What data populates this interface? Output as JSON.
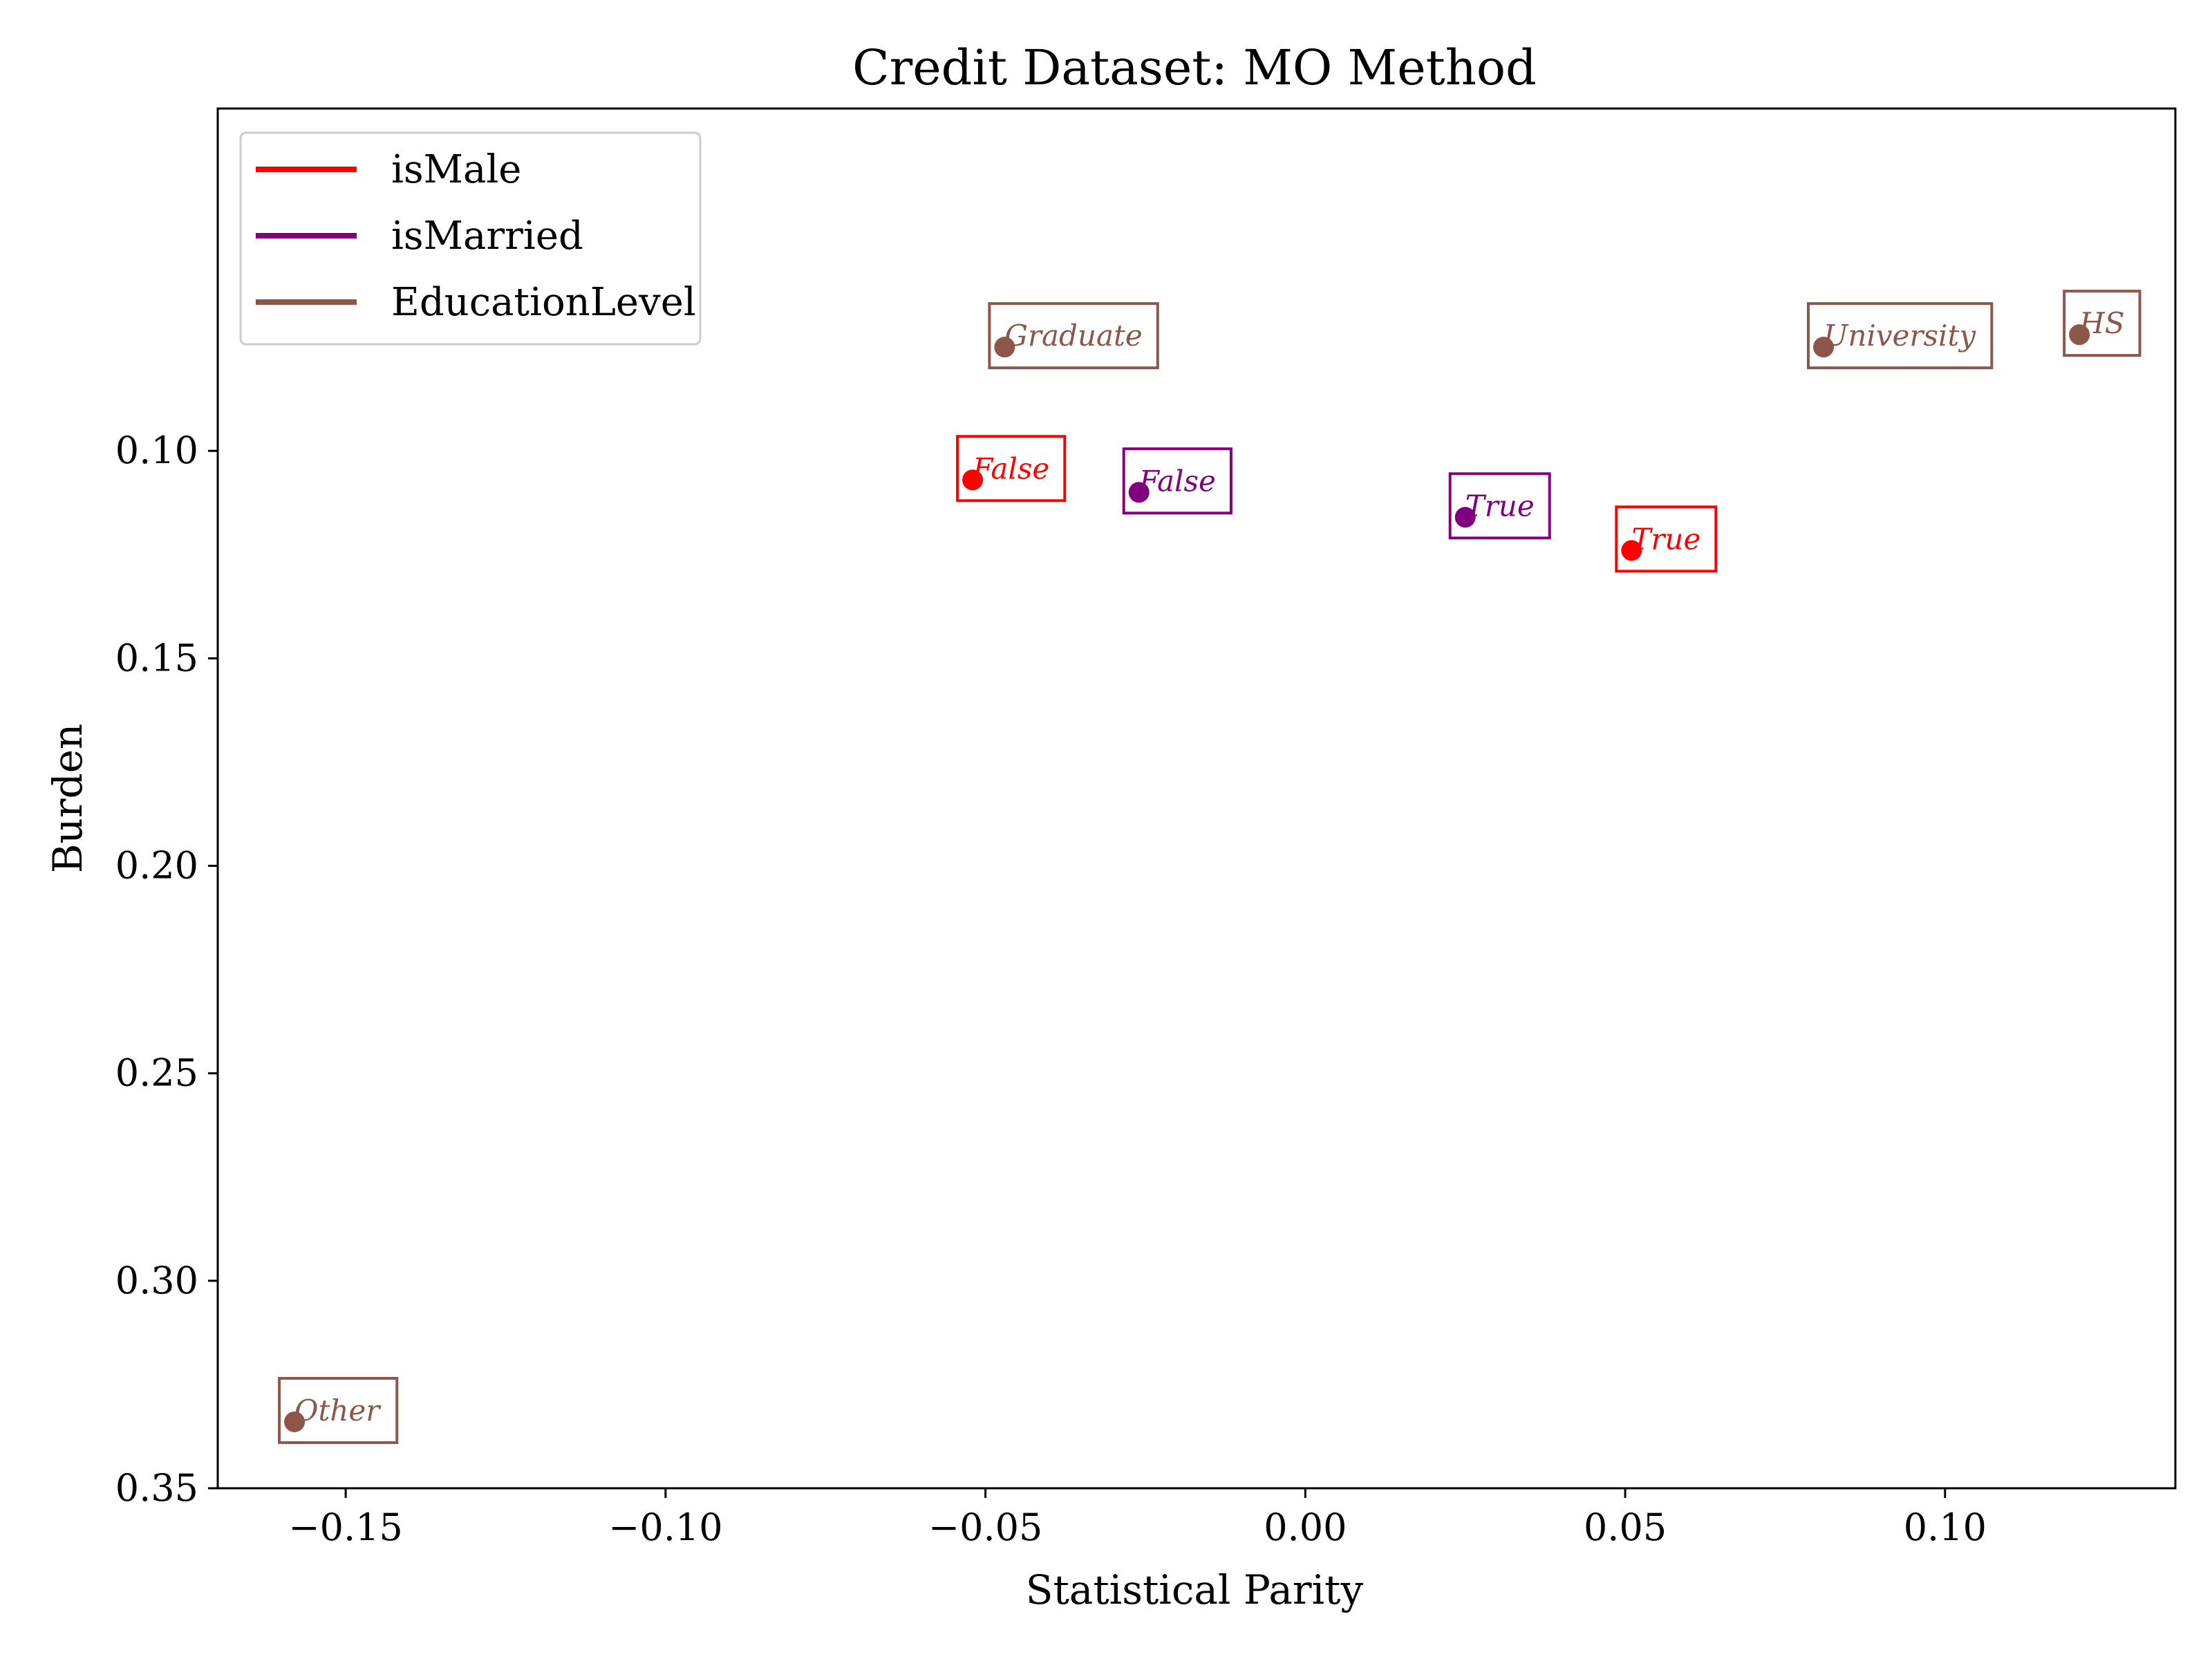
{
  "chart_data": {
    "type": "scatter",
    "title": "Credit Dataset: MO Method",
    "xlabel": "Statistical Parity",
    "ylabel": "Burden",
    "xlim": [
      -0.17,
      0.136
    ],
    "ylim": [
      0.35,
      0.0175
    ],
    "y_inverted": true,
    "xticks": [
      -0.15,
      -0.1,
      -0.05,
      0.0,
      0.05,
      0.1
    ],
    "xtick_labels": [
      "−0.15",
      "−0.10",
      "−0.05",
      "0.00",
      "0.05",
      "0.10"
    ],
    "yticks": [
      0.1,
      0.15,
      0.2,
      0.25,
      0.3,
      0.35
    ],
    "ytick_labels": [
      "0.10",
      "0.15",
      "0.20",
      "0.25",
      "0.30",
      "0.35"
    ],
    "grid": false,
    "legend_position": "top-left",
    "series": [
      {
        "name": "isMale",
        "color": "#ff0000",
        "points": [
          {
            "label": "False",
            "x": -0.052,
            "y": 0.107
          },
          {
            "label": "True",
            "x": 0.051,
            "y": 0.124
          }
        ]
      },
      {
        "name": "isMarried",
        "color": "#800080",
        "points": [
          {
            "label": "False",
            "x": -0.026,
            "y": 0.11
          },
          {
            "label": "True",
            "x": 0.025,
            "y": 0.116
          }
        ]
      },
      {
        "name": "EducationLevel",
        "color": "#8c564b",
        "points": [
          {
            "label": "Graduate",
            "x": -0.047,
            "y": 0.075
          },
          {
            "label": "University",
            "x": 0.081,
            "y": 0.075
          },
          {
            "label": "HS",
            "x": 0.121,
            "y": 0.072
          },
          {
            "label": "Other",
            "x": -0.158,
            "y": 0.334
          }
        ]
      }
    ]
  }
}
